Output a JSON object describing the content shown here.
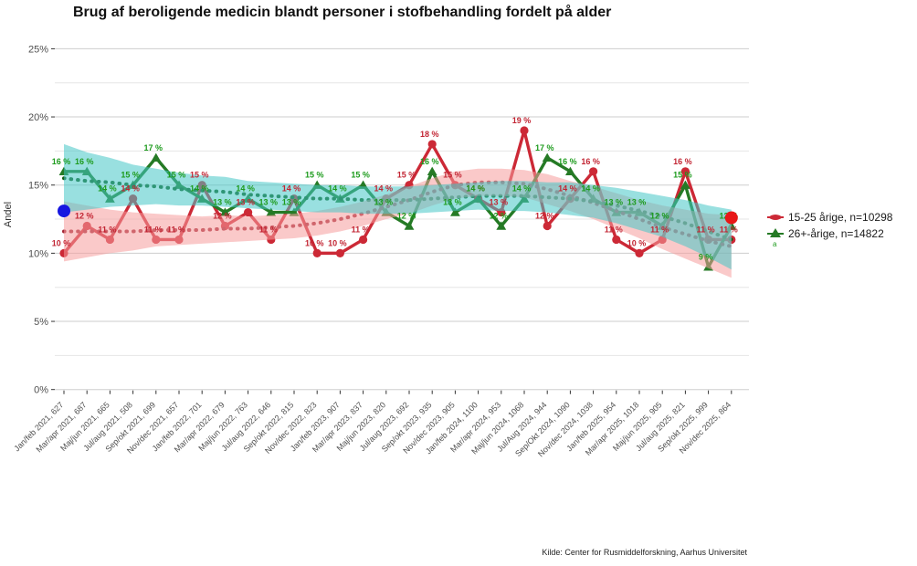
{
  "title": "Brug af beroligende medicin blandt personer i stofbehandling fordelt på alder",
  "caption": "Kilde: Center for Rusmiddelforskning, Aarhus Universitet",
  "y_axis": {
    "label": "Andel",
    "ticks": [
      {
        "value": 25,
        "label": "25%"
      },
      {
        "value": 20,
        "label": "20%"
      },
      {
        "value": 15,
        "label": "15%"
      },
      {
        "value": 10,
        "label": "10%"
      },
      {
        "value": 5,
        "label": "5%"
      },
      {
        "value": 0,
        "label": "0%"
      }
    ]
  },
  "legend": {
    "items": [
      {
        "label": "15-25 årige, n=10298",
        "color": "#cc2936",
        "marker": "lens"
      },
      {
        "label": "26+-årige, n=14822",
        "color": "#257a25",
        "marker": "triangle"
      }
    ],
    "key_note": "a"
  },
  "chart_data": {
    "type": "line",
    "title": "Brug af beroligende medicin blandt personer i stofbehandling fordelt på alder",
    "xlabel": "",
    "ylabel": "Andel",
    "ylim": [
      0,
      25
    ],
    "grid": true,
    "legend_position": "right",
    "categories": [
      "Jan/feb 2021, 627",
      "Mar/apr 2021, 687",
      "Maj/jun 2021, 665",
      "Jul/aug 2021, 508",
      "Sep/okt 2021, 699",
      "Nov/dec 2021, 657",
      "Jan/feb 2022, 701",
      "Mar/apr 2022, 679",
      "Maj/jun 2022, 763",
      "Jul/aug 2022, 646",
      "Sep/okt 2022, 815",
      "Nov/dec 2022, 823",
      "Jan/feb 2023, 907",
      "Mar/apr 2023, 837",
      "Maj/jun 2023, 820",
      "Jul/aug 2023, 692",
      "Sep/okt 2023, 935",
      "Nov/dec 2023, 905",
      "Jan/feb 2024, 1100",
      "Mar/apr 2024, 953",
      "Maj/jun 2024, 1068",
      "Jul/Aug 2024, 944",
      "Sep/Okt 2024, 1090",
      "Nov/dec 2024, 1038",
      "Jan/feb 2025, 954",
      "Mar/apr 2025, 1018",
      "Maj/jun 2025, 905",
      "Jul/aug 2025, 821",
      "Sep/okt 2025, 999",
      "Nov/dec 2025, 864"
    ],
    "series": [
      {
        "name": "15-25 årige, n=10298",
        "marker": "circle",
        "color": "#cc2936",
        "label_color": "#c22533",
        "band_color": "#f59c9c",
        "trend_color": "#a32533",
        "values": [
          10,
          12,
          11,
          14,
          11,
          11,
          15,
          12,
          13,
          11,
          14,
          10,
          10,
          11,
          14,
          15,
          18,
          15,
          14,
          13,
          19,
          12,
          14,
          16,
          11,
          10,
          11,
          16,
          11,
          11
        ],
        "labels": [
          "10 %",
          "12 %",
          "11 %",
          "14 %",
          "11 %",
          "11 %",
          "15 %",
          "12 %",
          "13 %",
          "11 %",
          "14 %",
          "10 %",
          "10 %",
          "11 %",
          "14 %",
          "15 %",
          "18 %",
          "15 %",
          "14 %",
          "13 %",
          "19 %",
          "12 %",
          "14 %",
          "16 %",
          "11 %",
          "10 %",
          "11 %",
          "16 %",
          "11 %",
          "11 %"
        ],
        "trend": [
          11.6,
          11.6,
          11.6,
          11.6,
          11.7,
          11.7,
          11.7,
          11.8,
          11.8,
          11.9,
          12.0,
          12.2,
          12.5,
          12.9,
          13.4,
          13.9,
          14.5,
          15.0,
          15.2,
          15.2,
          15.1,
          14.7,
          14.2,
          13.7,
          13.1,
          12.5,
          11.9,
          11.4,
          10.9,
          10.5
        ],
        "band_halfwidth": [
          2.2,
          1.9,
          1.6,
          1.4,
          1.2,
          1.1,
          1.0,
          1.0,
          0.9,
          0.9,
          0.9,
          0.9,
          0.9,
          0.9,
          0.9,
          1.0,
          1.0,
          1.0,
          1.0,
          1.0,
          1.0,
          1.1,
          1.1,
          1.2,
          1.3,
          1.4,
          1.6,
          1.8,
          2.0,
          2.3
        ]
      },
      {
        "name": "26+-årige, n=14822",
        "marker": "triangle",
        "color": "#257a25",
        "label_color": "#1d9b1d",
        "band_color": "#45c7c7",
        "trend_color": "#145c14",
        "values": [
          16,
          16,
          14,
          15,
          17,
          15,
          14,
          13,
          14,
          13,
          13,
          15,
          14,
          15,
          13,
          12,
          16,
          13,
          14,
          12,
          14,
          17,
          16,
          14,
          13,
          13,
          12,
          15,
          9,
          12
        ],
        "labels": [
          "16 %",
          "16 %",
          "14 %",
          "15 %",
          "17 %",
          "15 %",
          "14 %",
          "13 %",
          "14 %",
          "13 %",
          "13 %",
          "15 %",
          "14 %",
          "15 %",
          "13 %",
          "12 %",
          "16 %",
          "13 %",
          "14 %",
          "12 %",
          "14 %",
          "17 %",
          "16 %",
          "14 %",
          "13 %",
          "13 %",
          "12 %",
          "15 %",
          "9 %",
          "12 %"
        ],
        "trend": [
          15.5,
          15.3,
          15.2,
          15.0,
          14.9,
          14.7,
          14.6,
          14.5,
          14.3,
          14.2,
          14.1,
          14.0,
          14.0,
          13.9,
          13.9,
          13.9,
          14.0,
          14.1,
          14.2,
          14.2,
          14.2,
          14.1,
          14.0,
          13.8,
          13.5,
          13.1,
          12.7,
          12.2,
          11.6,
          11.0
        ],
        "band_halfwidth": [
          2.5,
          2.1,
          1.8,
          1.5,
          1.3,
          1.2,
          1.1,
          1.1,
          1.0,
          1.0,
          1.0,
          1.0,
          1.0,
          1.0,
          1.0,
          1.0,
          1.0,
          1.0,
          1.0,
          1.1,
          1.1,
          1.1,
          1.2,
          1.2,
          1.3,
          1.4,
          1.5,
          1.7,
          1.9,
          2.2
        ]
      }
    ],
    "highlight_points": [
      {
        "index": 0,
        "value": 13.1,
        "color": "#1616e0",
        "name": "blue-start-dot"
      },
      {
        "index": 29,
        "value": 12.6,
        "color": "#e81717",
        "name": "red-end-dot"
      }
    ]
  }
}
